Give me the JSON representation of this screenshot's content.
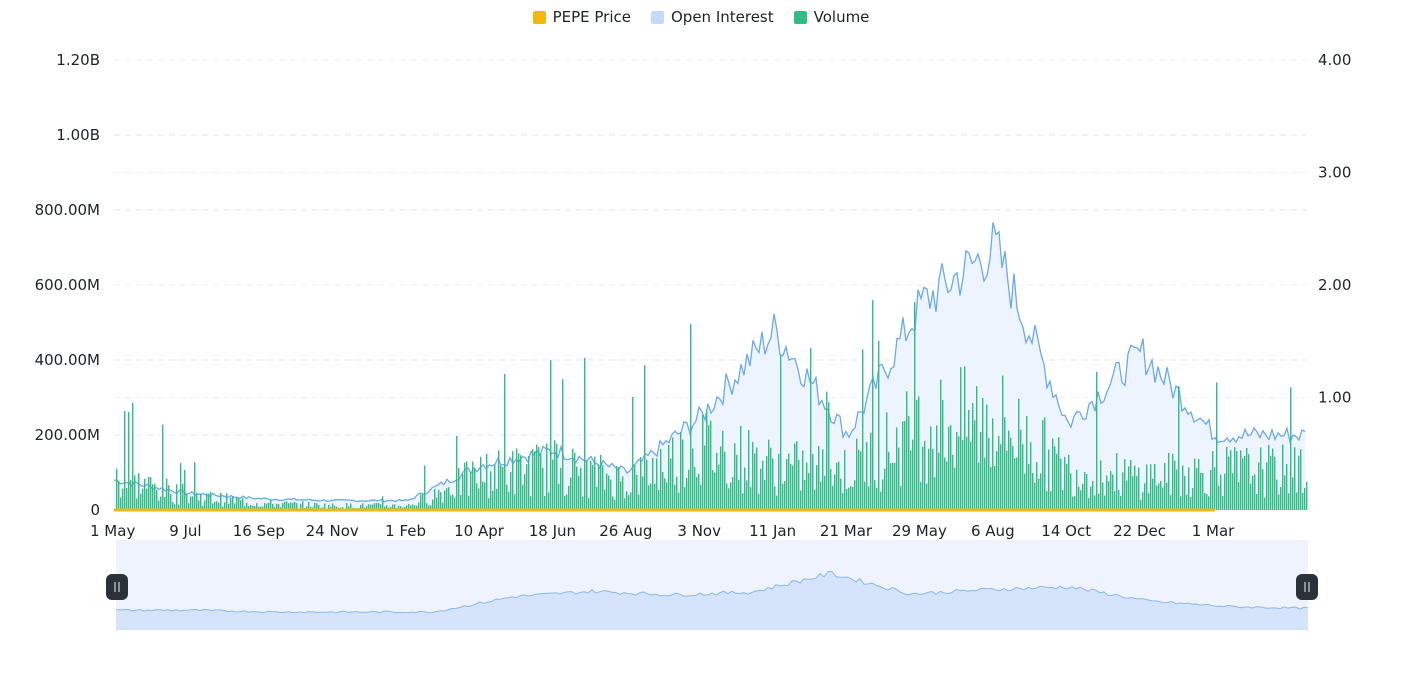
{
  "legend": [
    {
      "name": "PEPE Price",
      "color": "#f0b90b"
    },
    {
      "name": "Open Interest",
      "color": "#c4daf8"
    },
    {
      "name": "Volume",
      "color": "#2ebd85"
    }
  ],
  "chart_data": {
    "type": "bar",
    "x_ticks": [
      "1 May",
      "9 Jul",
      "16 Sep",
      "24 Nov",
      "1 Feb",
      "10 Apr",
      "18 Jun",
      "26 Aug",
      "3 Nov",
      "11 Jan",
      "21 Mar",
      "29 May",
      "6 Aug",
      "14 Oct",
      "22 Dec",
      "1 Mar"
    ],
    "y_left_ticks": [
      "0",
      "200.00M",
      "400.00M",
      "600.00M",
      "800.00M",
      "1.00B",
      "1.20B"
    ],
    "y_right_ticks": [
      "1.00",
      "2.00",
      "3.00",
      "4.00"
    ],
    "y_left_range": [
      0,
      1200000000
    ],
    "y_right_range": [
      0,
      4
    ],
    "grid": "horizontal-dashed",
    "legend_position": "top-center",
    "series": [
      {
        "name": "Open Interest",
        "kind": "area",
        "axis": "left",
        "points": [
          [
            "1 May",
            80000000
          ],
          [
            "9 Jul",
            45000000
          ],
          [
            "16 Sep",
            30000000
          ],
          [
            "24 Nov",
            25000000
          ],
          [
            "1 Feb",
            25000000
          ],
          [
            "10 Apr",
            120000000
          ],
          [
            "18 Jun",
            160000000
          ],
          [
            "26 Aug",
            100000000
          ],
          [
            "3 Nov",
            250000000
          ],
          [
            "11 Jan",
            480000000
          ],
          [
            "21 Mar",
            200000000
          ],
          [
            "29 May",
            550000000
          ],
          [
            "6 Aug",
            700000000
          ],
          [
            "14 Oct",
            230000000
          ],
          [
            "22 Dec",
            420000000
          ],
          [
            "1 Mar",
            200000000
          ]
        ]
      },
      {
        "name": "Volume",
        "kind": "bar",
        "axis": "left",
        "points": [
          [
            "1 May",
            90000000
          ],
          [
            "9 Jul",
            40000000
          ],
          [
            "16 Sep",
            18000000
          ],
          [
            "24 Nov",
            12000000
          ],
          [
            "1 Feb",
            12000000
          ],
          [
            "10 Apr",
            100000000
          ],
          [
            "18 Jun",
            120000000
          ],
          [
            "26 Aug",
            80000000
          ],
          [
            "3 Nov",
            180000000
          ],
          [
            "11 Jan",
            120000000
          ],
          [
            "21 Mar",
            110000000
          ],
          [
            "29 May",
            230000000
          ],
          [
            "6 Aug",
            250000000
          ],
          [
            "14 Oct",
            110000000
          ],
          [
            "22 Dec",
            90000000
          ],
          [
            "1 Mar",
            110000000
          ]
        ]
      },
      {
        "name": "PEPE Price",
        "kind": "line",
        "axis": "right",
        "points": [
          [
            "1 May",
            2e-06
          ],
          [
            "9 Jul",
            1e-06
          ],
          [
            "16 Sep",
            1e-06
          ],
          [
            "24 Nov",
            1e-06
          ],
          [
            "1 Feb",
            1e-06
          ],
          [
            "10 Apr",
            7e-06
          ],
          [
            "18 Jun",
            1.2e-05
          ],
          [
            "26 Aug",
            8e-06
          ],
          [
            "3 Nov",
            1.2e-05
          ],
          [
            "11 Jan",
            1.8e-05
          ],
          [
            "21 Mar",
            9e-06
          ],
          [
            "29 May",
            1.2e-05
          ],
          [
            "6 Aug",
            1.2e-05
          ],
          [
            "14 Oct",
            8e-06
          ],
          [
            "22 Dec",
            1e-05
          ],
          [
            "1 Mar",
            8e-06
          ]
        ]
      }
    ]
  },
  "navigator": {
    "points": [
      0.22,
      0.22,
      0.2,
      0.2,
      0.2,
      0.37,
      0.43,
      0.39,
      0.42,
      0.63,
      0.4,
      0.45,
      0.48,
      0.32,
      0.26,
      0.24
    ],
    "range": [
      0,
      1
    ]
  }
}
